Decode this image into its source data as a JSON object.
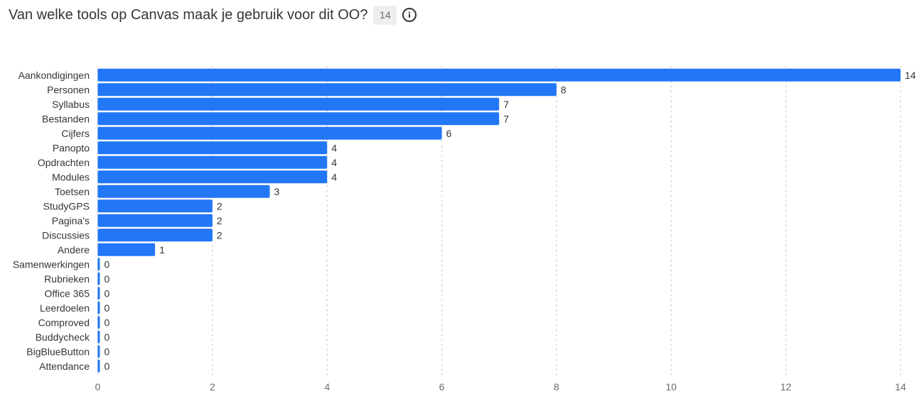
{
  "header": {
    "question": "Van welke tools op Canvas maak je gebruik voor dit OO?",
    "response_count": "14",
    "info_icon": "info-circle-icon"
  },
  "colors": {
    "bar": "#2177f6",
    "grid": "#d9d9d9",
    "text": "#32363a",
    "muted": "#6a6d70"
  },
  "chart_data": {
    "type": "bar",
    "orientation": "horizontal",
    "categories": [
      "Aankondigingen",
      "Personen",
      "Syllabus",
      "Bestanden",
      "Cijfers",
      "Panopto",
      "Opdrachten",
      "Modules",
      "Toetsen",
      "StudyGPS",
      "Pagina's",
      "Discussies",
      "Andere",
      "Samenwerkingen",
      "Rubrieken",
      "Office 365",
      "Leerdoelen",
      "Comproved",
      "Buddycheck",
      "BigBlueButton",
      "Attendance"
    ],
    "values": [
      14,
      8,
      7,
      7,
      6,
      4,
      4,
      4,
      3,
      2,
      2,
      2,
      1,
      0,
      0,
      0,
      0,
      0,
      0,
      0,
      0
    ],
    "title": "",
    "xlabel": "",
    "ylabel": "",
    "xlim": [
      0,
      14
    ],
    "xticks": [
      0,
      2,
      4,
      6,
      8,
      10,
      12,
      14
    ],
    "grid": "vertical dashed",
    "data_labels": true,
    "legend": "none"
  }
}
